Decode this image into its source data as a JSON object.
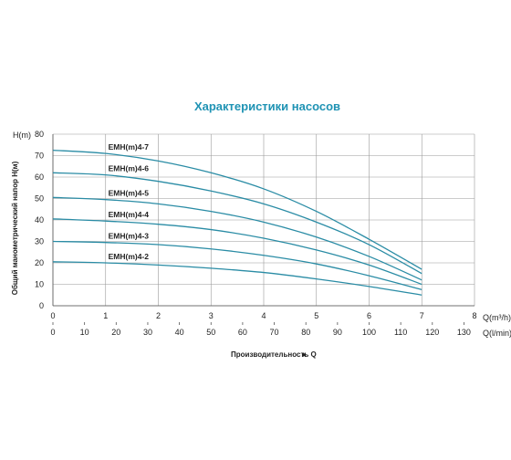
{
  "chart_data": {
    "type": "line",
    "title": "Характеристики насосов",
    "ylabel": "Общий манометрический напор H(м)",
    "ylabel_unit": "H(m)",
    "xlabel": "Производительность Q",
    "xlabel_arrow": "►",
    "x_unit_primary": "Q(m³/h)",
    "x_unit_secondary": "Q(l/min)",
    "xlim": [
      0,
      8
    ],
    "ylim": [
      0,
      80
    ],
    "grid": true,
    "y_ticks": [
      "0",
      "10",
      "20",
      "30",
      "40",
      "50",
      "60",
      "70",
      "80"
    ],
    "x_ticks_m3h": [
      "0",
      "1",
      "2",
      "3",
      "4",
      "5",
      "6",
      "7",
      "8"
    ],
    "x_ticks_lmin": [
      "0",
      "10",
      "20",
      "30",
      "40",
      "50",
      "60",
      "70",
      "80",
      "90",
      "100",
      "110",
      "120",
      "130"
    ],
    "series": [
      {
        "name": "EMH(m)4-7",
        "x": [
          0,
          1,
          2,
          3,
          4,
          5,
          6,
          7
        ],
        "values": [
          72.5,
          71,
          67.5,
          62,
          54.5,
          44,
          31,
          17
        ]
      },
      {
        "name": "EMH(m)4-6",
        "x": [
          0,
          1,
          2,
          3,
          4,
          5,
          6,
          7
        ],
        "values": [
          62,
          61,
          58,
          53.5,
          47.5,
          39,
          28.5,
          15
        ]
      },
      {
        "name": "EMH(m)4-5",
        "x": [
          0,
          1,
          2,
          3,
          4,
          5,
          6,
          7
        ],
        "values": [
          50.5,
          49.5,
          47.5,
          44,
          39,
          32,
          23,
          12
        ]
      },
      {
        "name": "EMH(m)4-4",
        "x": [
          0,
          1,
          2,
          3,
          4,
          5,
          6,
          7
        ],
        "values": [
          40.5,
          39.5,
          38,
          35.5,
          31.5,
          26,
          19,
          10
        ]
      },
      {
        "name": "EMH(m)4-3",
        "x": [
          0,
          1,
          2,
          3,
          4,
          5,
          6,
          7
        ],
        "values": [
          30,
          29.5,
          28.5,
          26.5,
          23.5,
          19.5,
          14,
          7.5
        ]
      },
      {
        "name": "EMH(m)4-2",
        "x": [
          0,
          1,
          2,
          3,
          4,
          5,
          6,
          7
        ],
        "values": [
          20.5,
          20,
          19,
          17.5,
          15.5,
          12.5,
          9,
          5
        ]
      }
    ],
    "colors": {
      "curve": "#2a8ca5",
      "title": "#1f93b4",
      "grid": "#9a9a9a"
    }
  }
}
